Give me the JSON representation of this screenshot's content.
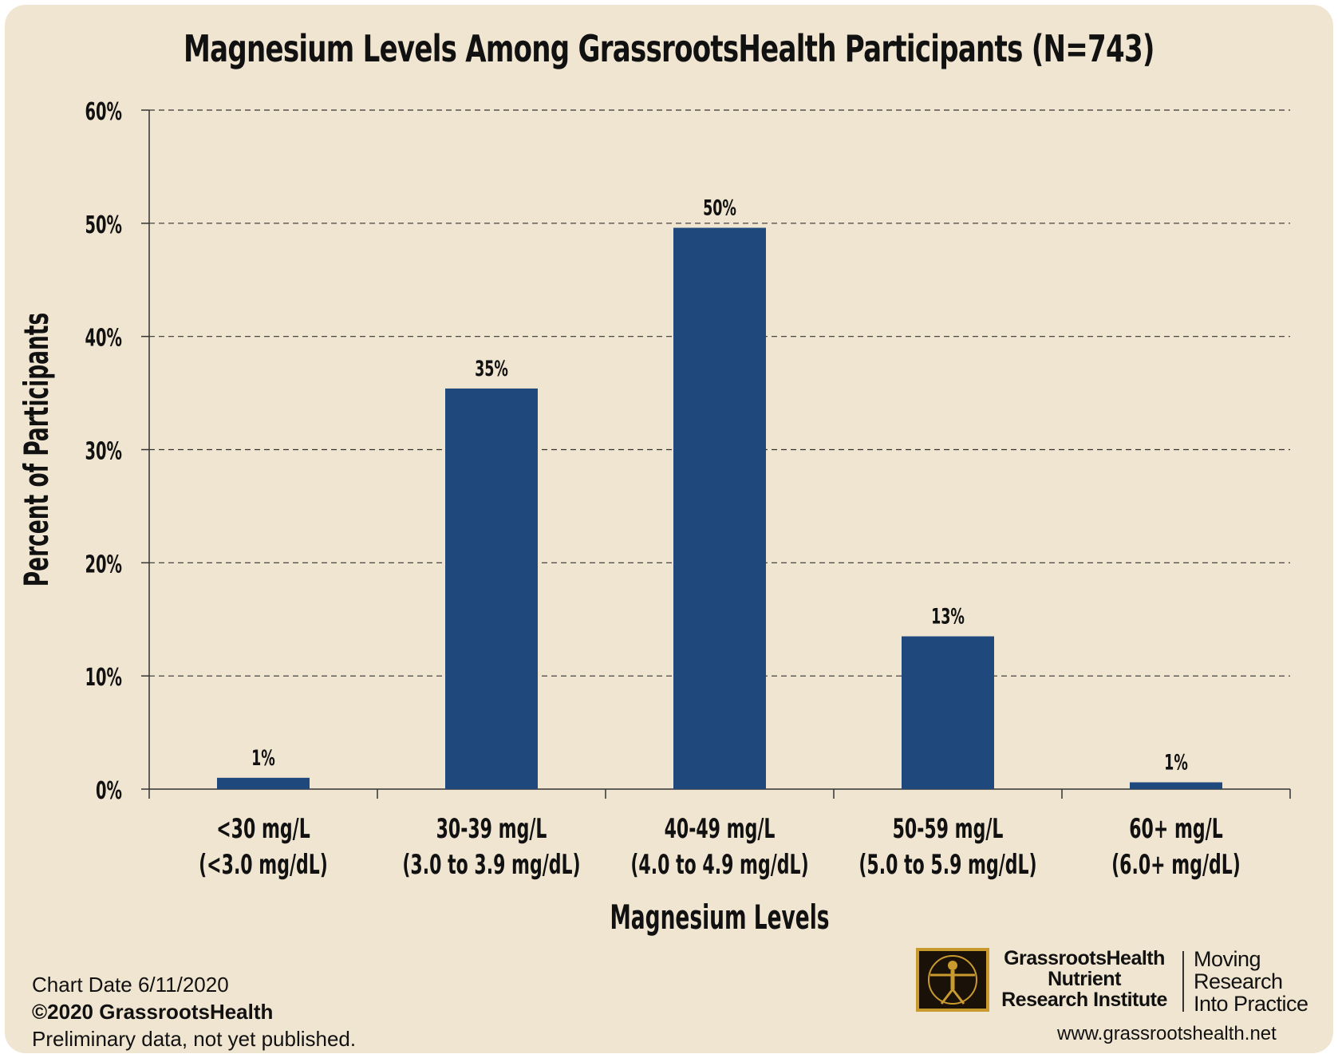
{
  "chart_data": {
    "type": "bar",
    "title": "Magnesium Levels Among GrassrootsHealth Participants (N=743)",
    "xlabel": "Magnesium Levels",
    "ylabel": "Percent of Participants",
    "ylim": [
      0,
      60
    ],
    "yticks": [
      "0%",
      "10%",
      "20%",
      "30%",
      "40%",
      "50%",
      "60%"
    ],
    "grid": true,
    "categories": [
      [
        "<30 mg/L",
        "(<3.0 mg/dL)"
      ],
      [
        "30-39 mg/L",
        "(3.0 to 3.9 mg/dL)"
      ],
      [
        "40-49 mg/L",
        "(4.0 to 4.9 mg/dL)"
      ],
      [
        "50-59 mg/L",
        "(5.0 to 5.9 mg/dL)"
      ],
      [
        "60+ mg/L",
        "(6.0+ mg/dL)"
      ]
    ],
    "values": [
      1.0,
      35.4,
      49.6,
      13.5,
      0.6
    ],
    "data_labels": [
      "1%",
      "35%",
      "50%",
      "13%",
      "1%"
    ],
    "bar_color": "#1f497d"
  },
  "footer": {
    "chart_date": "Chart Date 6/11/2020",
    "copyright": "©2020 GrassrootsHealth",
    "note": "Preliminary data, not yet published.",
    "org_name_lines": [
      "GrassrootsHealth",
      "Nutrient",
      "Research Institute"
    ],
    "tagline_lines": [
      "Moving",
      "Research",
      "Into Practice"
    ],
    "url": "www.grassrootshealth.net"
  },
  "colors": {
    "background": "#f0e5d1",
    "logo_gold": "#c99a2e"
  }
}
